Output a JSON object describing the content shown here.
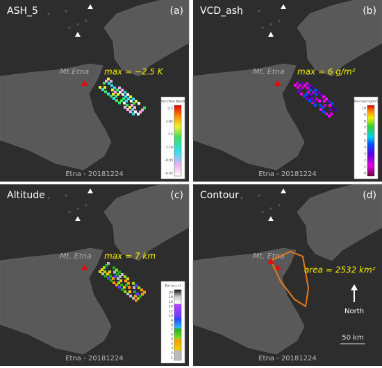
{
  "panels": [
    {
      "title": "ASH_5",
      "letter": "(a)",
      "volcano": "Mt.Etna",
      "annotation": "max = −2.5 K",
      "colorbar": {
        "title": "Ash (Five Band)",
        "ticks": [
          "-2.2",
          "-1.85",
          "-1.5",
          "-1.18",
          "-0.83",
          "-0.47"
        ]
      },
      "footer": "Etna - 20181224"
    },
    {
      "title": "VCD_ash",
      "letter": "(b)",
      "volcano": "Mt. Etna",
      "annotation": "max = 6 g/m²",
      "colorbar": {
        "title": "Ash load (g/m²)",
        "ticks": [
          "10",
          "9",
          "8",
          "7",
          "6",
          "5",
          "4",
          "3",
          "2",
          "1",
          "0"
        ]
      },
      "footer": "Etna - 20181224"
    },
    {
      "title": "Altitude",
      "letter": "(c)",
      "volcano": "Mt. Etna",
      "annotation": "max = 7 km",
      "colorbar": {
        "title": "Km (a.s.l.)",
        "ticks": [
          "20",
          "18",
          "16",
          "14",
          "12",
          "10",
          "9",
          "8",
          "7",
          "6",
          "5",
          "4",
          "3",
          "2",
          "1"
        ]
      },
      "footer": "Etna - 20181224"
    },
    {
      "title": "Contour",
      "letter": "(d)",
      "volcano": "Mt. Etna",
      "annotation": "area = 2532 km²",
      "north": "North",
      "scale": "50 km",
      "footer": "Etna - 20181224"
    }
  ]
}
